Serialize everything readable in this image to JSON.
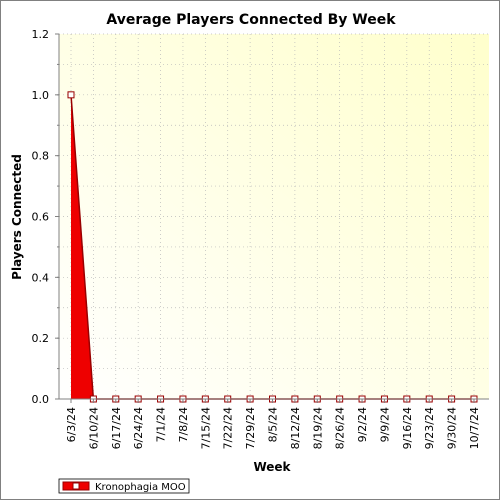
{
  "chart_data": {
    "type": "area",
    "title": "Average Players Connected By Week",
    "xlabel": "Week",
    "ylabel": "Players Connected",
    "categories": [
      "6/3/24",
      "6/10/24",
      "6/17/24",
      "6/24/24",
      "7/1/24",
      "7/8/24",
      "7/15/24",
      "7/22/24",
      "7/29/24",
      "8/5/24",
      "8/12/24",
      "8/19/24",
      "8/26/24",
      "9/2/24",
      "9/9/24",
      "9/16/24",
      "9/23/24",
      "9/30/24",
      "10/7/24"
    ],
    "series": [
      {
        "name": "Kronophagia MOO",
        "values": [
          1.0,
          0,
          0,
          0,
          0,
          0,
          0,
          0,
          0,
          0,
          0,
          0,
          0,
          0,
          0,
          0,
          0,
          0,
          0
        ]
      }
    ],
    "ylim": [
      0,
      1.2
    ],
    "yticks": [
      "0.0",
      "0.2",
      "0.4",
      "0.6",
      "0.8",
      "1.0",
      "1.2"
    ],
    "grid": true,
    "legend_position": "bottom-left",
    "colors": {
      "series_fill": "#ee0000",
      "series_line": "#990000",
      "marker_fill": "#ffffff",
      "plot_bg_light": "#ffffff",
      "plot_bg_dark": "#ffffcc"
    }
  }
}
